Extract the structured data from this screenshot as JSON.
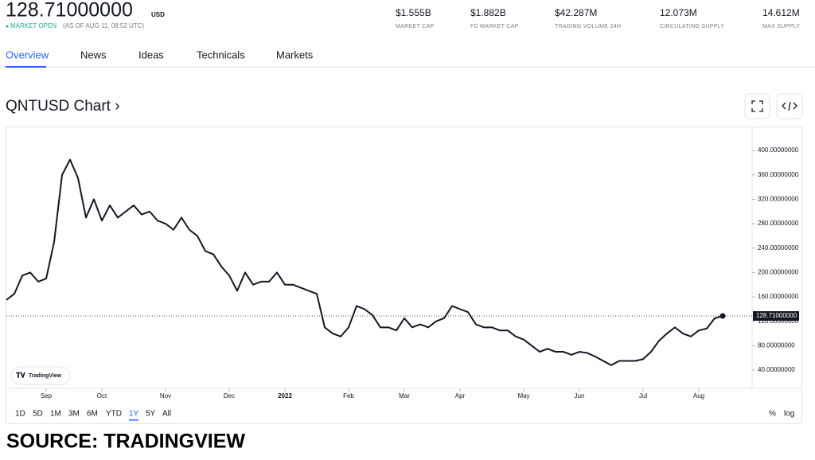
{
  "header": {
    "price": "128.71000000",
    "currency": "USD",
    "status": "MARKET OPEN",
    "status_time": "(AS OF AUG 11, 08:52 UTC)"
  },
  "stats": [
    {
      "value": "$1.555B",
      "label": "MARKET CAP"
    },
    {
      "value": "$1.882B",
      "label": "FD MARKET CAP"
    },
    {
      "value": "$42.287M",
      "label": "TRADING VOLUME 24H"
    },
    {
      "value": "12.073M",
      "label": "CIRCULATING SUPPLY"
    },
    {
      "value": "14.612M",
      "label": "MAX SUPPLY"
    }
  ],
  "tabs": [
    "Overview",
    "News",
    "Ideas",
    "Technicals",
    "Markets"
  ],
  "ranges": [
    "1D",
    "5D",
    "1M",
    "3M",
    "6M",
    "YTD",
    "1Y",
    "5Y",
    "All"
  ],
  "scale_options": [
    "%",
    "log"
  ],
  "watermark": "TradingView",
  "source": "SOURCE: TRADINGVIEW",
  "chart_data": {
    "type": "line",
    "title": "QNTUSD Chart ›",
    "color": "#131722",
    "categories": [
      null,
      null,
      null,
      null,
      null,
      "Sep",
      null,
      null,
      null,
      null,
      null,
      null,
      "Oct",
      null,
      null,
      null,
      null,
      null,
      null,
      null,
      "Nov",
      null,
      null,
      null,
      null,
      null,
      null,
      null,
      "Dec",
      null,
      null,
      null,
      null,
      null,
      null,
      "2022",
      null,
      null,
      null,
      null,
      null,
      null,
      null,
      "Feb",
      null,
      null,
      null,
      null,
      null,
      null,
      "Mar",
      null,
      null,
      null,
      null,
      null,
      null,
      "Apr",
      null,
      null,
      null,
      null,
      null,
      null,
      null,
      "May",
      null,
      null,
      null,
      null,
      null,
      null,
      "Jun",
      null,
      null,
      null,
      null,
      null,
      null,
      null,
      "Jul",
      null,
      null,
      null,
      null,
      null,
      null,
      "Aug",
      null,
      null,
      null
    ],
    "values": [
      155,
      165,
      195,
      200,
      185,
      190,
      250,
      360,
      385,
      355,
      290,
      320,
      285,
      310,
      290,
      300,
      310,
      295,
      300,
      285,
      280,
      270,
      290,
      270,
      260,
      235,
      230,
      210,
      195,
      170,
      200,
      180,
      185,
      185,
      200,
      180,
      180,
      175,
      170,
      165,
      110,
      100,
      95,
      110,
      145,
      140,
      130,
      110,
      110,
      105,
      125,
      110,
      115,
      110,
      120,
      125,
      145,
      140,
      135,
      115,
      110,
      110,
      105,
      105,
      95,
      90,
      80,
      70,
      75,
      70,
      70,
      65,
      70,
      68,
      62,
      55,
      48,
      55,
      55,
      55,
      58,
      70,
      88,
      100,
      110,
      100,
      95,
      105,
      108,
      125,
      128.71
    ],
    "ylim": [
      10,
      438
    ],
    "yticks": [
      {
        "value": 40,
        "label": "40.00000000"
      },
      {
        "value": 80,
        "label": "80.00000000"
      },
      {
        "value": 120,
        "label": "120.00000000"
      },
      {
        "value": 160,
        "label": "160.00000000"
      },
      {
        "value": 200,
        "label": "200.00000000"
      },
      {
        "value": 240,
        "label": "240.00000000"
      },
      {
        "value": 280,
        "label": "280.00000000"
      },
      {
        "value": 320,
        "label": "320.00000000"
      },
      {
        "value": 360,
        "label": "360.00000000"
      },
      {
        "value": 400,
        "label": "400.00000000"
      }
    ],
    "last_price": {
      "value": 128.71,
      "label": "128.71000000"
    }
  }
}
